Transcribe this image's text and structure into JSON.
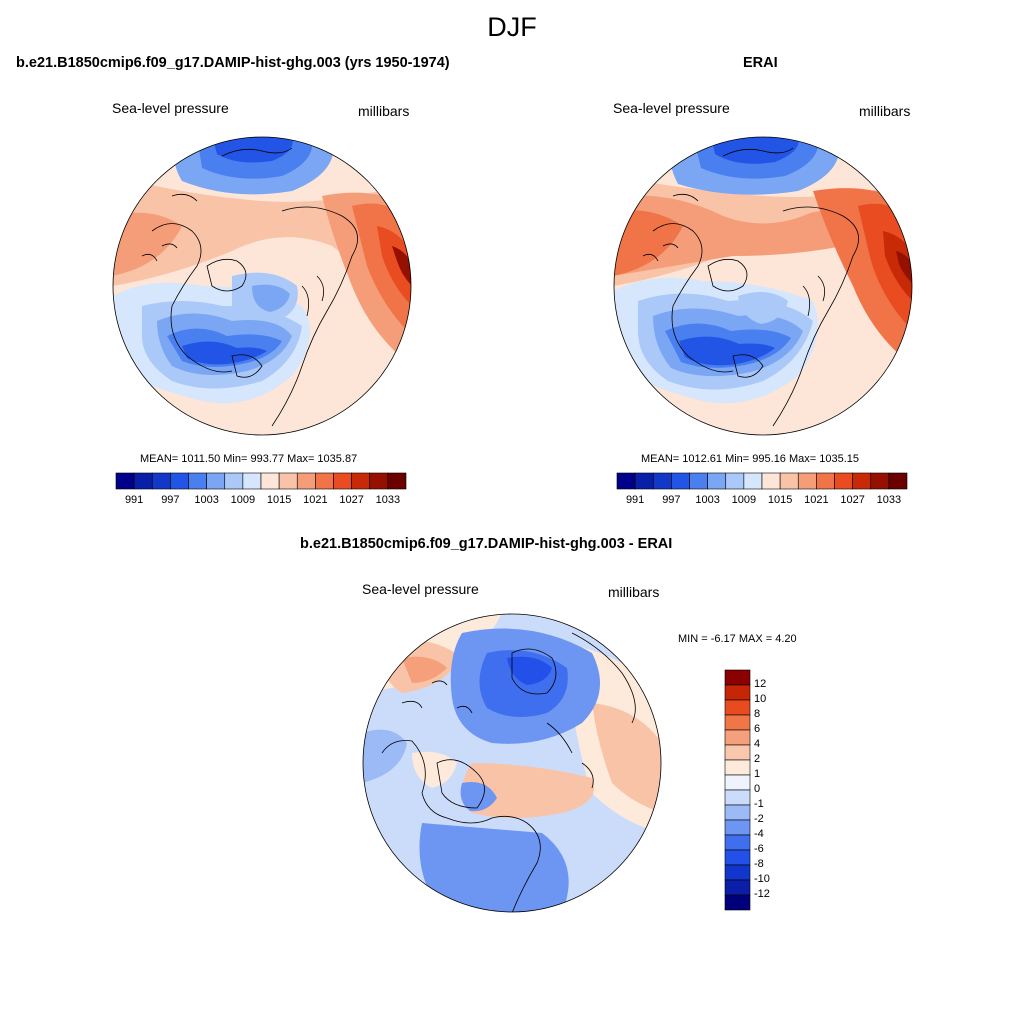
{
  "figure": {
    "title": "DJF"
  },
  "panels": [
    {
      "title": "b.e21.B1850cmip6.f09_g17.DAMIP-hist-ghg.003 (yrs 1950-1974)",
      "left_label": "Sea-level pressure",
      "right_label": "millibars",
      "stats": "MEAN= 1011.50  Min= 993.77  Max= 1035.87"
    },
    {
      "title": "ERAI",
      "left_label": "Sea-level pressure",
      "right_label": "millibars",
      "stats": "MEAN= 1012.61  Min= 995.16  Max= 1035.15"
    },
    {
      "title": "b.e21.B1850cmip6.f09_g17.DAMIP-hist-ghg.003 - ERAI",
      "left_label": "Sea-level pressure",
      "right_label": "millibars",
      "stats": "MIN =  -6.17 MAX =   4.20"
    }
  ],
  "colorbar_abs": {
    "colors": [
      "#00008b",
      "#0a1fa8",
      "#1238c8",
      "#2255e6",
      "#4a7ff0",
      "#7aa6f4",
      "#aac8f8",
      "#d6e6fc",
      "#fde6d8",
      "#f9c3a8",
      "#f59d78",
      "#f07448",
      "#e84c20",
      "#c82a08",
      "#961000",
      "#6b0000"
    ],
    "ticks": [
      "991",
      "997",
      "1003",
      "1009",
      "1015",
      "1021",
      "1027",
      "1033"
    ]
  },
  "colorbar_diff": {
    "colors": [
      "#00007a",
      "#0a1ea8",
      "#1236cc",
      "#2250e8",
      "#3f6fef",
      "#6d95f2",
      "#9cbaf6",
      "#cbdcfa",
      "#eef3fd",
      "#fdeadb",
      "#f9c7ab",
      "#f5a07a",
      "#f07648",
      "#e84c1e",
      "#c62606",
      "#8b0000"
    ],
    "ticks": [
      "12",
      "10",
      "8",
      "6",
      "4",
      "2",
      "1",
      "0",
      "-1",
      "-2",
      "-4",
      "-6",
      "-8",
      "-10",
      "-12"
    ]
  },
  "colors": {
    "background": "#ffffff",
    "coast": "#000000"
  }
}
